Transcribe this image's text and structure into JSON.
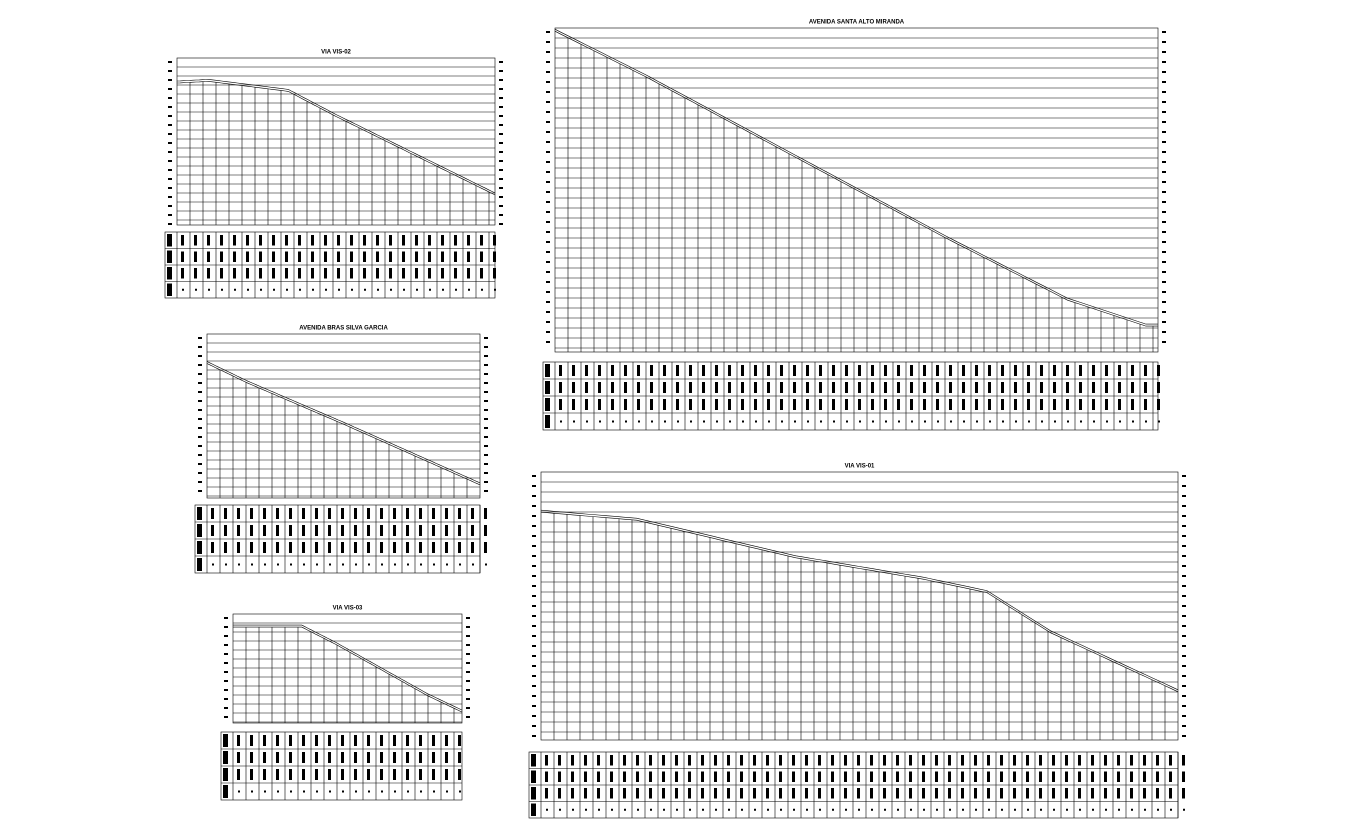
{
  "profiles": [
    {
      "title": "VIA VIS-02"
    },
    {
      "title": "AVENIDA BRAS SILVA GARCIA"
    },
    {
      "title": "VIA VIS-03"
    },
    {
      "title": "AVENIDA SANTA ALTO MIRANDA"
    },
    {
      "title": "VIA VIS-01"
    }
  ]
}
